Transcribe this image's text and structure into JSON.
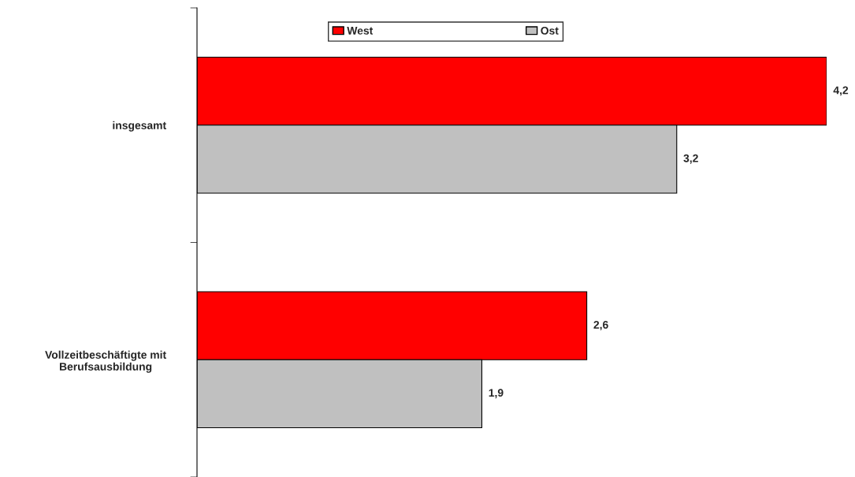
{
  "chart_data": {
    "type": "bar",
    "orientation": "horizontal",
    "categories": [
      "insgesamt",
      "Vollzeitbeschäftigte mit\nBerufsausbildung"
    ],
    "series": [
      {
        "name": "West",
        "color": "#ff0000",
        "values": [
          4.2,
          2.6
        ],
        "value_labels": [
          "4,2",
          "2,6"
        ]
      },
      {
        "name": "Ost",
        "color": "#c0c0c0",
        "values": [
          3.2,
          1.9
        ],
        "value_labels": [
          "3,2",
          "1,9"
        ]
      }
    ],
    "legend": "top",
    "grid": false
  }
}
